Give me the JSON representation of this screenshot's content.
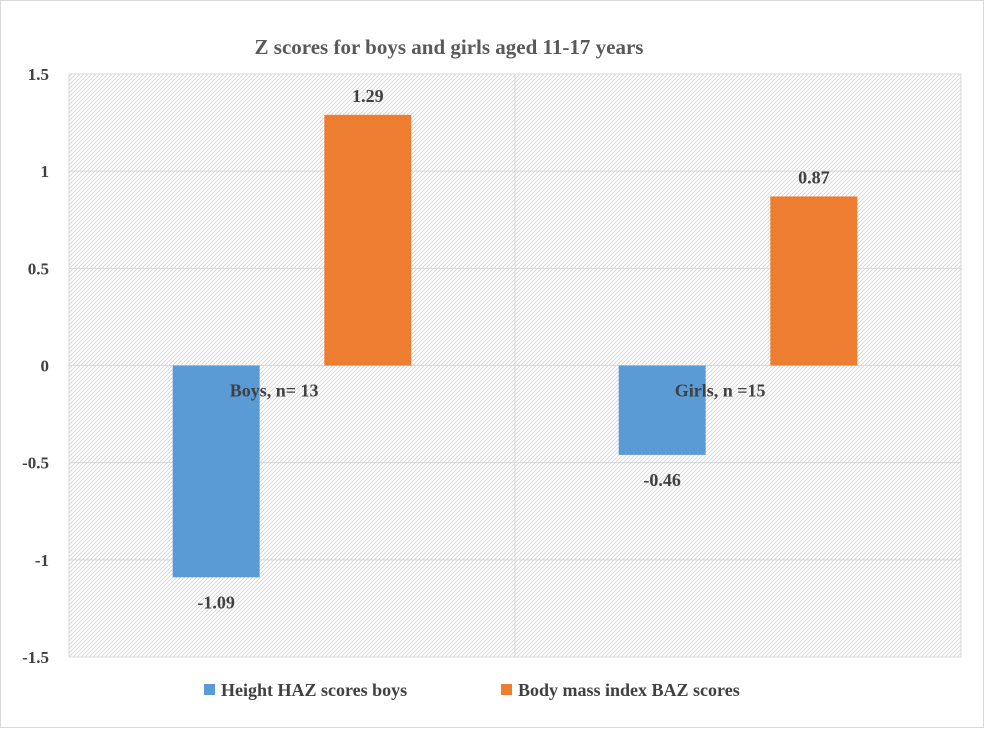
{
  "chart_data": {
    "type": "bar",
    "title": "Z scores for boys and girls aged 11-17 years",
    "categories": [
      "Boys, n= 13",
      "Girls, n =15"
    ],
    "series": [
      {
        "name": "Height HAZ scores boys",
        "color": "#5b9bd5",
        "values": [
          -1.09,
          -0.46
        ]
      },
      {
        "name": "Body mass index BAZ scores",
        "color": "#ed7d31",
        "values": [
          1.29,
          0.87
        ]
      }
    ],
    "data_labels": [
      [
        "-1.09",
        "-0.46"
      ],
      [
        "1.29",
        "0.87"
      ]
    ],
    "y_ticks": [
      1.5,
      1,
      0.5,
      0,
      -0.5,
      -1,
      -1.5
    ],
    "y_tick_labels": [
      "1.5",
      "1",
      "0.5",
      "0",
      "-0.5",
      "-1",
      "-1.5"
    ],
    "ylim": [
      -1.5,
      1.5
    ],
    "xlabel": "",
    "ylabel": "",
    "grid": true,
    "legend_position": "bottom"
  }
}
